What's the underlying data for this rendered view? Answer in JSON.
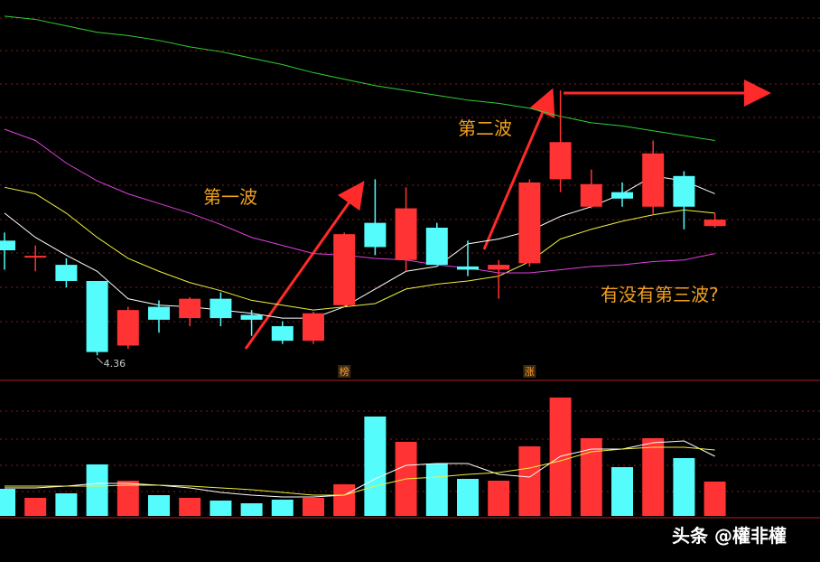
{
  "chart_data": {
    "type": "candlestick",
    "ylim": [
      4.21,
      6.56
    ],
    "up_color": "#ff3333",
    "down_color": "#54fcfc",
    "open": [
      5.07,
      4.97,
      4.92,
      4.82,
      4.42,
      4.66,
      4.59,
      4.71,
      4.61,
      4.54,
      4.45,
      4.67,
      5.18,
      4.95,
      5.15,
      4.91,
      4.89,
      4.93,
      5.45,
      5.28,
      5.37,
      5.28,
      5.47,
      5.16
    ],
    "close": [
      5.01,
      4.97,
      4.82,
      4.38,
      4.64,
      4.58,
      4.71,
      4.59,
      4.58,
      4.45,
      4.62,
      5.11,
      5.03,
      5.27,
      4.92,
      4.89,
      4.92,
      5.43,
      5.68,
      5.42,
      5.33,
      5.61,
      5.28,
      5.2
    ],
    "high": [
      5.12,
      5.04,
      4.96,
      4.82,
      4.66,
      4.7,
      4.72,
      4.75,
      4.64,
      4.57,
      4.63,
      5.12,
      5.45,
      5.4,
      5.18,
      5.07,
      4.95,
      5.45,
      6.0,
      5.51,
      5.43,
      5.69,
      5.5,
      5.24
    ],
    "low": [
      4.89,
      4.88,
      4.78,
      4.36,
      4.4,
      4.5,
      4.54,
      4.54,
      4.48,
      4.43,
      4.43,
      4.66,
      4.98,
      4.88,
      4.92,
      4.85,
      4.71,
      4.91,
      5.37,
      5.27,
      5.28,
      5.23,
      5.14,
      5.15
    ],
    "ma": [
      {
        "color": "#ffffff",
        "values": [
          5.24,
          5.09,
          4.98,
          4.88,
          4.71,
          4.67,
          4.66,
          4.64,
          4.62,
          4.59,
          4.59,
          4.66,
          4.77,
          4.88,
          4.91,
          5.05,
          5.08,
          5.13,
          5.22,
          5.28,
          5.36,
          5.47,
          5.44,
          5.36
        ]
      },
      {
        "color": "#f0f040",
        "values": [
          5.4,
          5.36,
          5.24,
          5.09,
          4.96,
          4.88,
          4.81,
          4.76,
          4.7,
          4.67,
          4.64,
          4.66,
          4.68,
          4.77,
          4.8,
          4.82,
          4.85,
          4.94,
          5.08,
          5.14,
          5.19,
          5.23,
          5.26,
          5.24
        ]
      },
      {
        "color": "#e040e0",
        "values": [
          5.76,
          5.69,
          5.55,
          5.44,
          5.36,
          5.3,
          5.24,
          5.17,
          5.09,
          5.04,
          4.99,
          4.98,
          4.96,
          4.95,
          4.92,
          4.9,
          4.87,
          4.87,
          4.89,
          4.91,
          4.92,
          4.94,
          4.95,
          4.99
        ]
      },
      {
        "color": "#30d030",
        "values": [
          6.46,
          6.44,
          6.4,
          6.36,
          6.34,
          6.31,
          6.27,
          6.24,
          6.2,
          6.16,
          6.11,
          6.07,
          6.03,
          6.0,
          5.97,
          5.94,
          5.92,
          5.89,
          5.84,
          5.8,
          5.78,
          5.75,
          5.72,
          5.69
        ]
      }
    ],
    "volume": {
      "ylim": [
        0,
        150
      ],
      "values": [
        30,
        20,
        25,
        57,
        39,
        23,
        20,
        17,
        14,
        18,
        20,
        35,
        110,
        82,
        58,
        41,
        39,
        77,
        131,
        86,
        54,
        86,
        64,
        38
      ],
      "series": [
        {
          "color": "#ffffff",
          "values": [
            31,
            31,
            33,
            36,
            36,
            34,
            31,
            26,
            23,
            21,
            21,
            23,
            41,
            56,
            58,
            58,
            46,
            43,
            66,
            74,
            74,
            81,
            83,
            66
          ]
        },
        {
          "color": "#f0f040",
          "values": [
            33,
            33,
            33,
            33,
            34,
            34,
            33,
            31,
            29,
            26,
            23,
            23,
            33,
            41,
            43,
            46,
            48,
            53,
            61,
            71,
            74,
            76,
            76,
            73
          ]
        }
      ]
    },
    "annotations": [
      "第一波",
      "第二波",
      "有没有第三波?"
    ],
    "markers": [
      {
        "index": 11,
        "text": "榜"
      },
      {
        "index": 17,
        "text": "涨"
      }
    ],
    "watermark": "头条 @權非權"
  }
}
